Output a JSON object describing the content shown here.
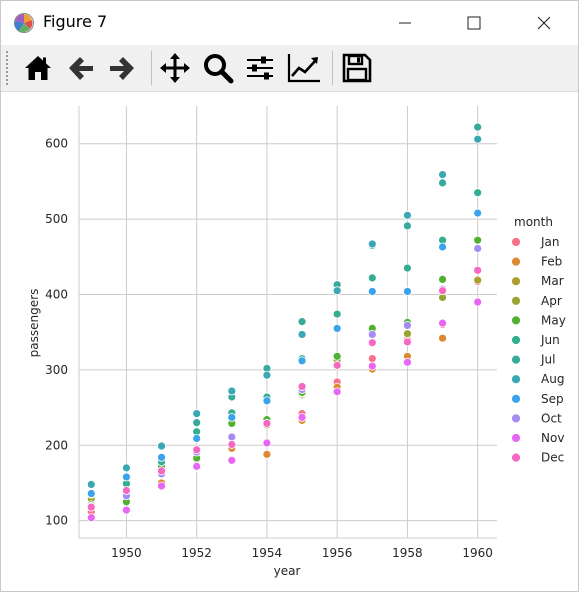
{
  "window": {
    "title": "Figure 7",
    "controls": [
      "minimize",
      "maximize",
      "close"
    ]
  },
  "toolbar": {
    "buttons": [
      {
        "name": "home-icon"
      },
      {
        "name": "back-icon"
      },
      {
        "name": "forward-icon"
      },
      {
        "name": "pan-icon"
      },
      {
        "name": "zoom-icon"
      },
      {
        "name": "configure-subplots-icon"
      },
      {
        "name": "edit-axis-icon"
      },
      {
        "name": "save-icon"
      }
    ]
  },
  "chart_data": {
    "type": "scatter",
    "title": "",
    "xlabel": "year",
    "ylabel": "passengers",
    "xlim": [
      1948.65,
      1960.55
    ],
    "ylim": [
      77,
      650
    ],
    "xticks": [
      1950,
      1952,
      1954,
      1956,
      1958,
      1960
    ],
    "yticks": [
      100,
      200,
      300,
      400,
      500,
      600
    ],
    "grid": true,
    "legend": {
      "title": "month",
      "placement": "right"
    },
    "x": [
      1949,
      1950,
      1951,
      1952,
      1953,
      1954,
      1955,
      1956,
      1957,
      1958,
      1959,
      1960
    ],
    "series": [
      {
        "name": "Jan",
        "color": "#f77189",
        "values": [
          112,
          115,
          145,
          171,
          196,
          204,
          242,
          284,
          315,
          340,
          360,
          417
        ]
      },
      {
        "name": "Feb",
        "color": "#dc8932",
        "values": [
          118,
          126,
          150,
          180,
          196,
          188,
          233,
          277,
          301,
          318,
          342,
          391
        ]
      },
      {
        "name": "Mar",
        "color": "#ae9d31",
        "values": [
          132,
          141,
          178,
          193,
          236,
          235,
          267,
          317,
          356,
          362,
          406,
          419
        ]
      },
      {
        "name": "Apr",
        "color": "#97a431",
        "values": [
          129,
          135,
          163,
          181,
          235,
          227,
          269,
          313,
          348,
          348,
          396,
          461
        ]
      },
      {
        "name": "May",
        "color": "#50b131",
        "values": [
          121,
          125,
          172,
          183,
          229,
          234,
          270,
          318,
          355,
          363,
          420,
          472
        ]
      },
      {
        "name": "Jun",
        "color": "#34ae91",
        "values": [
          135,
          149,
          178,
          218,
          243,
          264,
          315,
          374,
          422,
          435,
          472,
          535
        ]
      },
      {
        "name": "Jul",
        "color": "#37aa9c",
        "values": [
          148,
          170,
          199,
          230,
          264,
          302,
          364,
          413,
          465,
          491,
          548,
          622
        ]
      },
      {
        "name": "Aug",
        "color": "#39a7b4",
        "values": [
          148,
          170,
          199,
          242,
          272,
          293,
          347,
          405,
          467,
          505,
          559,
          606
        ]
      },
      {
        "name": "Sep",
        "color": "#3ba3ec",
        "values": [
          136,
          158,
          184,
          209,
          237,
          259,
          312,
          355,
          404,
          404,
          463,
          508
        ]
      },
      {
        "name": "Oct",
        "color": "#a48cf4",
        "values": [
          119,
          133,
          162,
          191,
          211,
          229,
          274,
          306,
          347,
          359,
          407,
          461
        ]
      },
      {
        "name": "Nov",
        "color": "#e866f4",
        "values": [
          104,
          114,
          146,
          172,
          180,
          203,
          237,
          271,
          305,
          310,
          362,
          390
        ]
      },
      {
        "name": "Dec",
        "color": "#f668c2",
        "values": [
          118,
          140,
          166,
          194,
          201,
          229,
          278,
          306,
          336,
          337,
          405,
          432
        ]
      }
    ]
  }
}
